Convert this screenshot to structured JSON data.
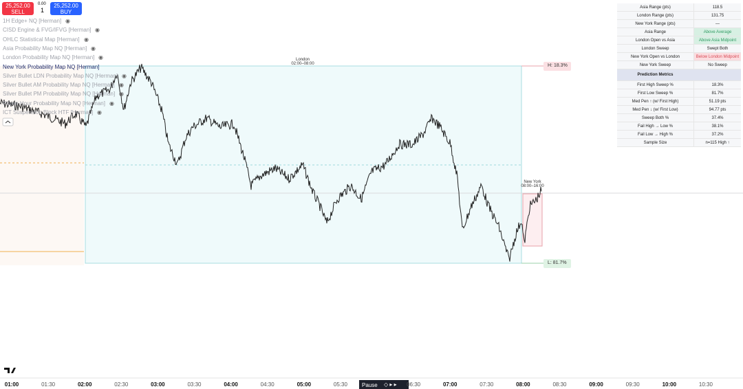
{
  "order_panel": {
    "sell_price": "25,252.00",
    "sell_label": "SELL",
    "spread": "0.00",
    "quantity": "1",
    "buy_price": "25,252.00",
    "buy_label": "BUY"
  },
  "indicators": [
    "1H Edge+ NQ [Herman]",
    "CISD Engine & FVG/IFVG [Herman]",
    "OHLC Statistical Map [Herman]",
    "Asia Probability Map NQ [Herman]",
    "London Probability Map NQ [Herman]",
    "New York Probability Map NQ [Herman]",
    "Silver Bullet LDN Probability Map NQ [Herman]",
    "Silver Bullet AM Probability Map NQ [Herman]",
    "Silver Bullet PM Probability Map NQ [Herman]",
    "Power Hour Probability Map NQ [Herman]",
    "ICT Suspension Block HTF [Herman]"
  ],
  "sessions": {
    "london": {
      "name": "London",
      "hours": "02:00–08:00"
    },
    "new_york": {
      "name": "New York",
      "hours": "08:00–16:00"
    }
  },
  "levels": {
    "high": "H: 18.3%",
    "low": "L: 81.7%"
  },
  "stats_table": {
    "rows": [
      {
        "label": "Asia Range (pts)",
        "value": "118.5"
      },
      {
        "label": "London Range (pts)",
        "value": "131.75"
      },
      {
        "label": "New York Range (pts)",
        "value": "—"
      },
      {
        "label": "Asia Range",
        "value": "Above Average",
        "highlight": "green"
      },
      {
        "label": "London Open vs Asia",
        "value": "Above Asia Midpoint",
        "highlight": "green"
      },
      {
        "label": "London Sweep",
        "value": "Swept Both"
      },
      {
        "label": "New York Open vs London",
        "value": "Below London Midpoint",
        "highlight": "red"
      },
      {
        "label": "New York Sweep",
        "value": "No Sweep"
      }
    ],
    "section_header": "Prediction Metrics",
    "metrics": [
      {
        "label": "First High Sweep %",
        "value": "18.3%"
      },
      {
        "label": "First Low Sweep %",
        "value": "81.7%"
      },
      {
        "label": "Med Pen ↑ (w/ First High)",
        "value": "51.19 pts"
      },
      {
        "label": "Med Pen ↓ (w/ First Low)",
        "value": "94.77 pts"
      },
      {
        "label": "Sweep Both %",
        "value": "37.4%"
      },
      {
        "label": "Fail High → Low %",
        "value": "38.1%"
      },
      {
        "label": "Fail Low → High %",
        "value": "37.2%"
      },
      {
        "label": "Sample Size",
        "value": "n=115 High ↑"
      }
    ]
  },
  "time_axis": [
    "01:00",
    "01:30",
    "02:00",
    "02:30",
    "03:00",
    "03:30",
    "04:00",
    "04:30",
    "05:00",
    "05:30",
    "06:30",
    "07:00",
    "07:30",
    "08:00",
    "08:30",
    "09:00",
    "09:30",
    "10:00",
    "10:30"
  ],
  "replay": {
    "pause": "Pause"
  }
}
